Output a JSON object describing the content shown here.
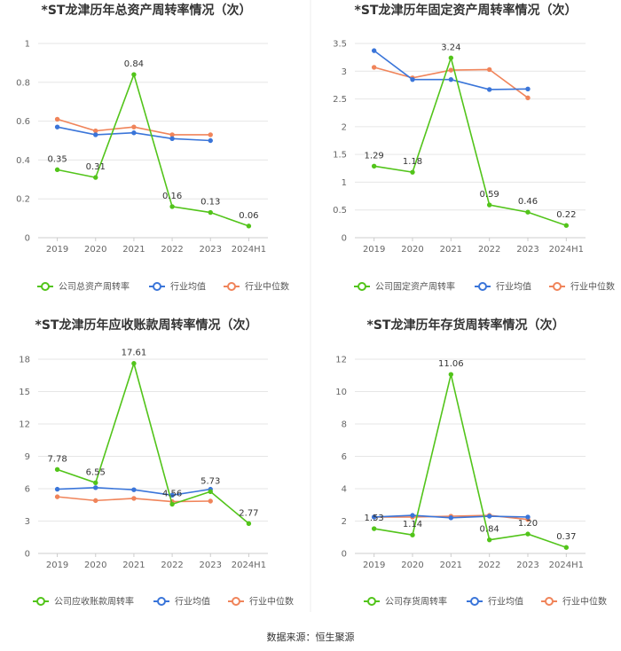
{
  "source": "数据来源：恒生聚源",
  "legend_common": [
    "行业均值",
    "行业中位数"
  ],
  "colors": {
    "company": "#52c41a",
    "industry_avg": "#3a75d9",
    "industry_median": "#f0845a"
  },
  "chart_data": [
    {
      "type": "line",
      "title": "*ST龙津历年总资产周转率情况（次）",
      "categories": [
        "2019",
        "2020",
        "2021",
        "2022",
        "2023",
        "2024H1"
      ],
      "ylim": [
        0,
        1
      ],
      "yticks": [
        0,
        0.2,
        0.4,
        0.6,
        0.8,
        1
      ],
      "ytick_labels": [
        "0",
        "0.2",
        "0.4",
        "0.6",
        "0.8",
        "1"
      ],
      "grid": true,
      "legend_position": "bottom",
      "series": [
        {
          "name": "公司总资产周转率",
          "values": [
            0.35,
            0.31,
            0.84,
            0.16,
            0.13,
            0.06
          ],
          "labels": [
            "0.35",
            "0.31",
            "0.84",
            "0.16",
            "0.13",
            "0.06"
          ]
        },
        {
          "name": "行业均值",
          "values": [
            0.57,
            0.53,
            0.54,
            0.51,
            0.5,
            null
          ]
        },
        {
          "name": "行业中位数",
          "values": [
            0.61,
            0.55,
            0.57,
            0.53,
            0.53,
            null
          ]
        }
      ]
    },
    {
      "type": "line",
      "title": "*ST龙津历年固定资产周转率情况（次）",
      "categories": [
        "2019",
        "2020",
        "2021",
        "2022",
        "2023",
        "2024H1"
      ],
      "ylim": [
        0,
        3.5
      ],
      "yticks": [
        0,
        0.5,
        1,
        1.5,
        2,
        2.5,
        3,
        3.5
      ],
      "ytick_labels": [
        "0",
        "0.5",
        "1",
        "1.5",
        "2",
        "2.5",
        "3",
        "3.5"
      ],
      "grid": true,
      "legend_position": "bottom",
      "series": [
        {
          "name": "公司固定资产周转率",
          "values": [
            1.29,
            1.18,
            3.24,
            0.59,
            0.46,
            0.22
          ],
          "labels": [
            "1.29",
            "1.18",
            "3.24",
            "0.59",
            "0.46",
            "0.22"
          ]
        },
        {
          "name": "行业均值",
          "values": [
            3.37,
            2.85,
            2.85,
            2.67,
            2.68,
            null
          ]
        },
        {
          "name": "行业中位数",
          "values": [
            3.07,
            2.88,
            3.02,
            3.03,
            2.52,
            null
          ]
        }
      ]
    },
    {
      "type": "line",
      "title": "*ST龙津历年应收账款周转率情况（次）",
      "categories": [
        "2019",
        "2020",
        "2021",
        "2022",
        "2023",
        "2024H1"
      ],
      "ylim": [
        0,
        18
      ],
      "yticks": [
        0,
        3,
        6,
        9,
        12,
        15,
        18
      ],
      "ytick_labels": [
        "0",
        "3",
        "6",
        "9",
        "12",
        "15",
        "18"
      ],
      "grid": true,
      "legend_position": "bottom",
      "series": [
        {
          "name": "公司应收账款周转率",
          "values": [
            7.78,
            6.55,
            17.61,
            4.56,
            5.73,
            2.77
          ],
          "labels": [
            "7.78",
            "6.55",
            "17.61",
            "4.56",
            "5.73",
            "2.77"
          ]
        },
        {
          "name": "行业均值",
          "values": [
            5.95,
            6.1,
            5.9,
            5.4,
            5.95,
            null
          ]
        },
        {
          "name": "行业中位数",
          "values": [
            5.25,
            4.9,
            5.1,
            4.8,
            4.85,
            null
          ]
        }
      ]
    },
    {
      "type": "line",
      "title": "*ST龙津历年存货周转率情况（次）",
      "categories": [
        "2019",
        "2020",
        "2021",
        "2022",
        "2023",
        "2024H1"
      ],
      "ylim": [
        0,
        12
      ],
      "yticks": [
        0,
        2,
        4,
        6,
        8,
        10,
        12
      ],
      "ytick_labels": [
        "0",
        "2",
        "4",
        "6",
        "8",
        "10",
        "12"
      ],
      "grid": true,
      "legend_position": "bottom",
      "series": [
        {
          "name": "公司存货周转率",
          "values": [
            1.53,
            1.14,
            11.06,
            0.84,
            1.2,
            0.37
          ],
          "labels": [
            "1.53",
            "1.14",
            "11.06",
            "0.84",
            "1.20",
            "0.37"
          ]
        },
        {
          "name": "行业均值",
          "values": [
            2.25,
            2.35,
            2.2,
            2.3,
            2.25,
            null
          ]
        },
        {
          "name": "行业中位数",
          "values": [
            2.25,
            2.25,
            2.3,
            2.35,
            2.1,
            null
          ]
        }
      ]
    }
  ]
}
